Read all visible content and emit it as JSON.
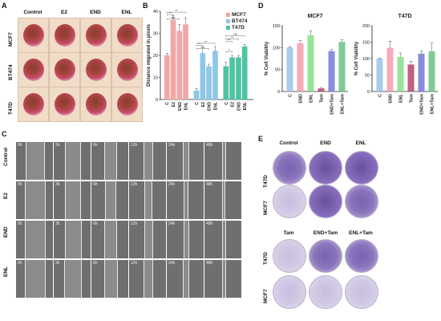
{
  "panel_labels": {
    "A": "A",
    "B": "B",
    "C": "C",
    "D": "D",
    "E": "E"
  },
  "panel_a": {
    "columns": [
      "Control",
      "E2",
      "END",
      "ENL"
    ],
    "rows": [
      "MCF7",
      "BT474",
      "T47D"
    ]
  },
  "panel_c": {
    "rows": [
      "Control",
      "E2",
      "END",
      "ENL"
    ],
    "timepoints": [
      "0h",
      "3h",
      "6h",
      "12h",
      "24h",
      "48h"
    ]
  },
  "panel_e": {
    "top_columns": [
      "Control",
      "END",
      "ENL"
    ],
    "bottom_columns": [
      "Tam",
      "END+Tam",
      "ENL+Tam"
    ],
    "rows": [
      "T47D",
      "MCF7"
    ],
    "dish_tones": {
      "top": [
        [
          "mid",
          "full",
          "full"
        ],
        [
          "light",
          "full",
          "mid"
        ]
      ],
      "bottom": [
        [
          "light",
          "mid",
          "mid"
        ],
        [
          "light",
          "light",
          "light"
        ]
      ]
    }
  },
  "chart_data": [
    {
      "panel": "B",
      "type": "bar",
      "title": "",
      "xlabel": "",
      "ylabel": "Distance migrated in pixels",
      "ylim": [
        0,
        40
      ],
      "yticks": [
        0,
        10,
        20,
        30,
        40
      ],
      "legend": {
        "position": "top-right",
        "entries": [
          "MCF7",
          "BT474",
          "T47D"
        ]
      },
      "groups": [
        {
          "name": "MCF7",
          "color": "#f2a7a7",
          "categories": [
            "C",
            "E2",
            "END",
            "ENL"
          ],
          "values": [
            20,
            36,
            31,
            34
          ],
          "errors": [
            1,
            2,
            3,
            3
          ]
        },
        {
          "name": "BT474",
          "color": "#8fc7e8",
          "categories": [
            "C",
            "E2",
            "END",
            "ENL"
          ],
          "values": [
            4,
            21,
            15,
            22
          ],
          "errors": [
            1,
            2,
            1,
            2
          ]
        },
        {
          "name": "T47D",
          "color": "#4fc4a2",
          "categories": [
            "C",
            "E2",
            "END",
            "ENL"
          ],
          "values": [
            15,
            19,
            19,
            24
          ],
          "errors": [
            2,
            1,
            1,
            1
          ]
        }
      ],
      "significance": [
        "**",
        "ns",
        "**",
        "ns",
        "**",
        "**",
        "**",
        "ns",
        "***",
        "*"
      ]
    },
    {
      "panel": "D",
      "type": "bar",
      "title": "MCF7",
      "xlabel": "",
      "ylabel": "% Cell Viability",
      "ylim": [
        0,
        150
      ],
      "yticks": [
        0,
        50,
        100,
        150
      ],
      "categories": [
        "C",
        "END",
        "ENL",
        "Tam",
        "END+Tam",
        "ENL+Tam"
      ],
      "values": [
        100,
        110,
        128,
        7,
        92,
        113
      ],
      "errors": [
        2,
        6,
        10,
        2,
        4,
        5
      ],
      "colors": [
        "#9ec7ea",
        "#f4a3b4",
        "#8ee08e",
        "#b94e73",
        "#7d7fd8",
        "#6fc58a"
      ]
    },
    {
      "panel": "D",
      "type": "bar",
      "title": "T47D",
      "xlabel": "",
      "ylabel": "% Cell Viability",
      "ylim": [
        0,
        200
      ],
      "yticks": [
        0,
        50,
        100,
        150,
        200
      ],
      "categories": [
        "C",
        "END",
        "ENL",
        "Tam",
        "END+Tam",
        "ENL+Tam"
      ],
      "values": [
        100,
        133,
        105,
        82,
        115,
        122
      ],
      "errors": [
        2,
        20,
        12,
        10,
        8,
        25
      ],
      "colors": [
        "#9ec7ea",
        "#f4a3b4",
        "#8ee08e",
        "#b94e73",
        "#7d7fd8",
        "#6fc58a"
      ]
    }
  ]
}
